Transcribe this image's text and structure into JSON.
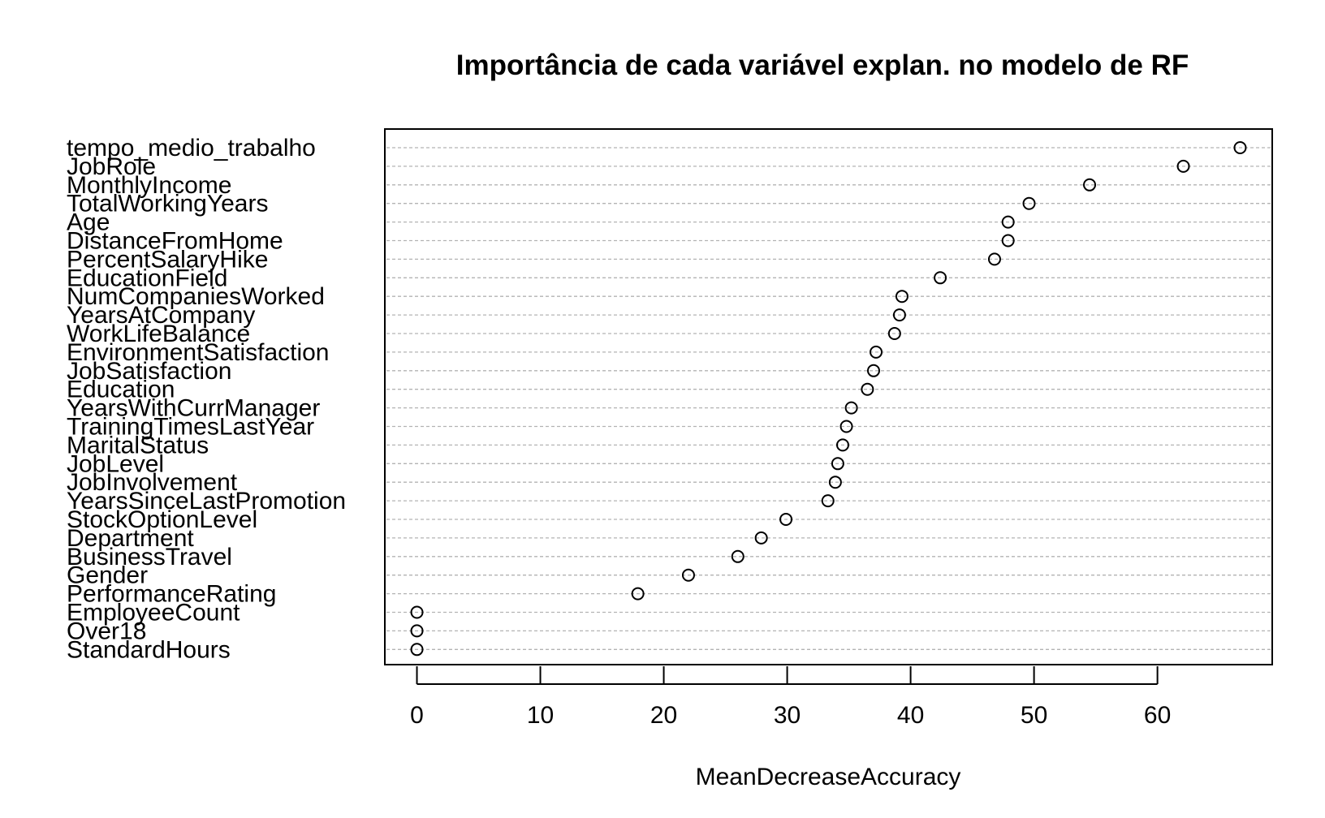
{
  "chart_data": {
    "type": "scatter",
    "title": "Importância de cada variável explan. no modelo de RF",
    "xlabel": "MeanDecreaseAccuracy",
    "ylabel": "",
    "xlim": [
      -2.6,
      69.3
    ],
    "xticks": [
      0,
      10,
      20,
      30,
      40,
      50,
      60
    ],
    "grid": true,
    "categories": [
      "tempo_medio_trabalho",
      "JobRole",
      "MonthlyIncome",
      "TotalWorkingYears",
      "Age",
      "DistanceFromHome",
      "PercentSalaryHike",
      "EducationField",
      "NumCompaniesWorked",
      "YearsAtCompany",
      "WorkLifeBalance",
      "EnvironmentSatisfaction",
      "JobSatisfaction",
      "Education",
      "YearsWithCurrManager",
      "TrainingTimesLastYear",
      "MaritalStatus",
      "JobLevel",
      "JobInvolvement",
      "YearsSinceLastPromotion",
      "StockOptionLevel",
      "Department",
      "BusinessTravel",
      "Gender",
      "PerformanceRating",
      "EmployeeCount",
      "Over18",
      "StandardHours"
    ],
    "values": [
      66.7,
      62.1,
      54.5,
      49.6,
      47.9,
      47.9,
      46.8,
      42.4,
      39.3,
      39.1,
      38.7,
      37.2,
      37.0,
      36.5,
      35.2,
      34.8,
      34.5,
      34.1,
      33.9,
      33.3,
      29.9,
      27.9,
      26.0,
      22.0,
      17.9,
      0,
      0,
      0
    ]
  }
}
